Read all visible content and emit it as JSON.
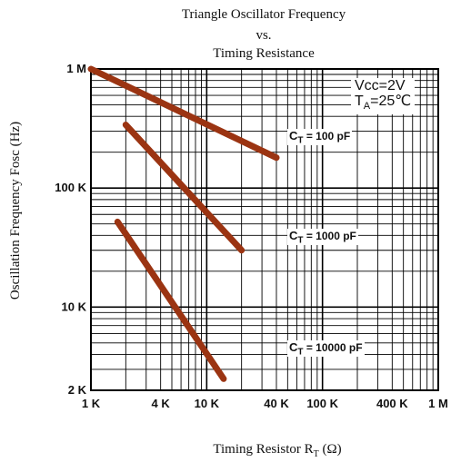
{
  "title_lines": [
    "Triangle Oscillator Frequency",
    "vs.",
    "Timing Resistance"
  ],
  "conditions": {
    "vcc": "Vcc=2V",
    "ta_prefix": "T",
    "ta_sub": "A",
    "ta_suffix": "=25℃"
  },
  "chart_data": {
    "type": "line",
    "title": "Triangle Oscillator Frequency vs. Timing Resistance",
    "xlabel": "Timing Resistor R_T (Ω)",
    "ylabel": "Oscillation Frequency Fosc (Hz)",
    "xlabel_parts": {
      "main": "Timing Resistor R",
      "sub": "T",
      "unit": "(Ω)"
    },
    "x_scale": "log",
    "y_scale": "log",
    "xlim": [
      1000,
      1000000
    ],
    "ylim": [
      2000,
      1000000
    ],
    "x_ticks": [
      {
        "value": 1000,
        "label": "1 K"
      },
      {
        "value": 4000,
        "label": "4 K"
      },
      {
        "value": 10000,
        "label": "10 K"
      },
      {
        "value": 40000,
        "label": "40 K"
      },
      {
        "value": 100000,
        "label": "100 K"
      },
      {
        "value": 400000,
        "label": "400 K"
      },
      {
        "value": 1000000,
        "label": "1 M"
      }
    ],
    "y_ticks": [
      {
        "value": 1000000,
        "label": "1 M"
      },
      {
        "value": 100000,
        "label": "100 K"
      },
      {
        "value": 10000,
        "label": "10 K"
      },
      {
        "value": 2000,
        "label": "2 K"
      }
    ],
    "grid": true,
    "series": [
      {
        "name": "C_T = 100 pF",
        "label_prefix": "C",
        "label_sub": "T",
        "label_suffix": " = 100 pF",
        "color": "#9b3412",
        "x": [
          1000,
          40000
        ],
        "y": [
          1000000,
          180000
        ]
      },
      {
        "name": "C_T = 1000 pF",
        "label_prefix": "C",
        "label_sub": "T",
        "label_suffix": " = 1000 pF",
        "color": "#9b3412",
        "x": [
          2000,
          20000
        ],
        "y": [
          340000,
          30000
        ]
      },
      {
        "name": "C_T = 10000 pF",
        "label_prefix": "C",
        "label_sub": "T",
        "label_suffix": " = 10000 pF",
        "color": "#9b3412",
        "x": [
          1700,
          14000
        ],
        "y": [
          52000,
          2500
        ]
      }
    ]
  }
}
